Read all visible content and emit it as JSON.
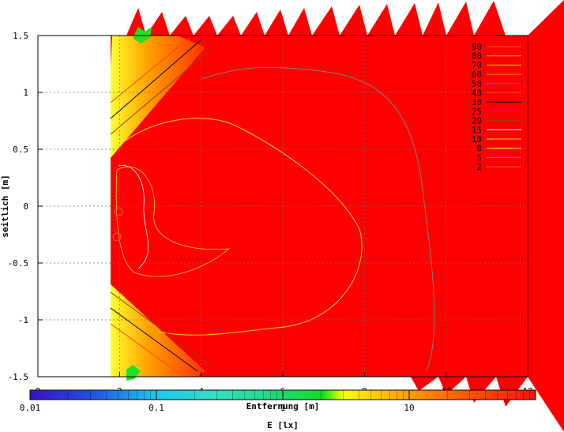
{
  "chart_data": {
    "type": "heatmap",
    "xlabel": "Entfernung [m]",
    "ylabel": "seitlich [m]",
    "colorbar_label": "E [lx]",
    "xlim": [
      0,
      12
    ],
    "ylim": [
      -1.5,
      1.5
    ],
    "x_ticks": [
      "0",
      "2",
      "4",
      "6",
      "8",
      "10",
      "12"
    ],
    "y_ticks": [
      "1.5",
      "1",
      "0.5",
      "0",
      "-0.5",
      "-1",
      "-1.5"
    ],
    "colorbar_ticks": [
      "0.01",
      "0.1",
      "1",
      "10"
    ],
    "colorbar_range": [
      0.01,
      100
    ],
    "colorbar_scale": "log",
    "grid": true,
    "legend_position": "top-right",
    "contour_levels": [
      {
        "label": "90",
        "color": "#d2691e"
      },
      {
        "label": "80",
        "color": "#ffa500"
      },
      {
        "label": "70",
        "color": "#ffd700"
      },
      {
        "label": "60",
        "color": "#ff8c00"
      },
      {
        "label": "50",
        "color": "#4169e1"
      },
      {
        "label": "40",
        "color": "#ff4500"
      },
      {
        "label": "30",
        "color": "#000000"
      },
      {
        "label": "25",
        "color": "#cc00cc"
      },
      {
        "label": "20",
        "color": "#8b4513"
      },
      {
        "label": "15",
        "color": "#ffffff"
      },
      {
        "label": "10",
        "color": "#ffd700"
      },
      {
        "label": "8",
        "color": "#ffff00"
      },
      {
        "label": "5",
        "color": "#808080"
      },
      {
        "label": "2",
        "color": "#ff6060"
      }
    ],
    "background_color": "#ff0000"
  }
}
